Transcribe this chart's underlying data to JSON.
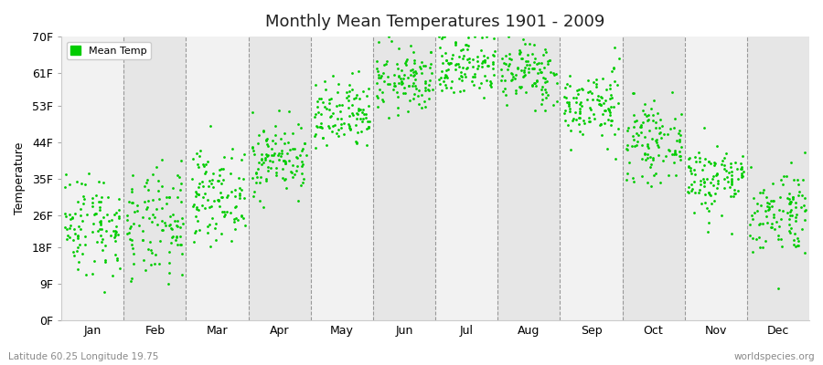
{
  "title": "Monthly Mean Temperatures 1901 - 2009",
  "ylabel": "Temperature",
  "ytick_labels": [
    "0F",
    "9F",
    "18F",
    "26F",
    "35F",
    "44F",
    "53F",
    "61F",
    "70F"
  ],
  "ytick_values": [
    0,
    9,
    18,
    26,
    35,
    44,
    53,
    61,
    70
  ],
  "month_labels": [
    "Jan",
    "Feb",
    "Mar",
    "Apr",
    "May",
    "Jun",
    "Jul",
    "Aug",
    "Sep",
    "Oct",
    "Nov",
    "Dec"
  ],
  "dot_color": "#00cc00",
  "bg_color": "#ffffff",
  "plot_bg_light": "#f2f2f2",
  "plot_bg_dark": "#e6e6e6",
  "legend_label": "Mean Temp",
  "footer_left": "Latitude 60.25 Longitude 19.75",
  "footer_right": "worldspecies.org",
  "ymin": 0,
  "ymax": 70,
  "num_years": 109,
  "seed": 42,
  "monthly_means_f": [
    24.0,
    23.0,
    31.0,
    40.0,
    50.0,
    59.0,
    63.0,
    61.0,
    53.0,
    44.0,
    35.0,
    27.0
  ],
  "monthly_stds_f": [
    6.5,
    7.0,
    5.5,
    4.5,
    4.5,
    4.0,
    4.0,
    4.0,
    4.5,
    4.5,
    4.5,
    5.5
  ]
}
